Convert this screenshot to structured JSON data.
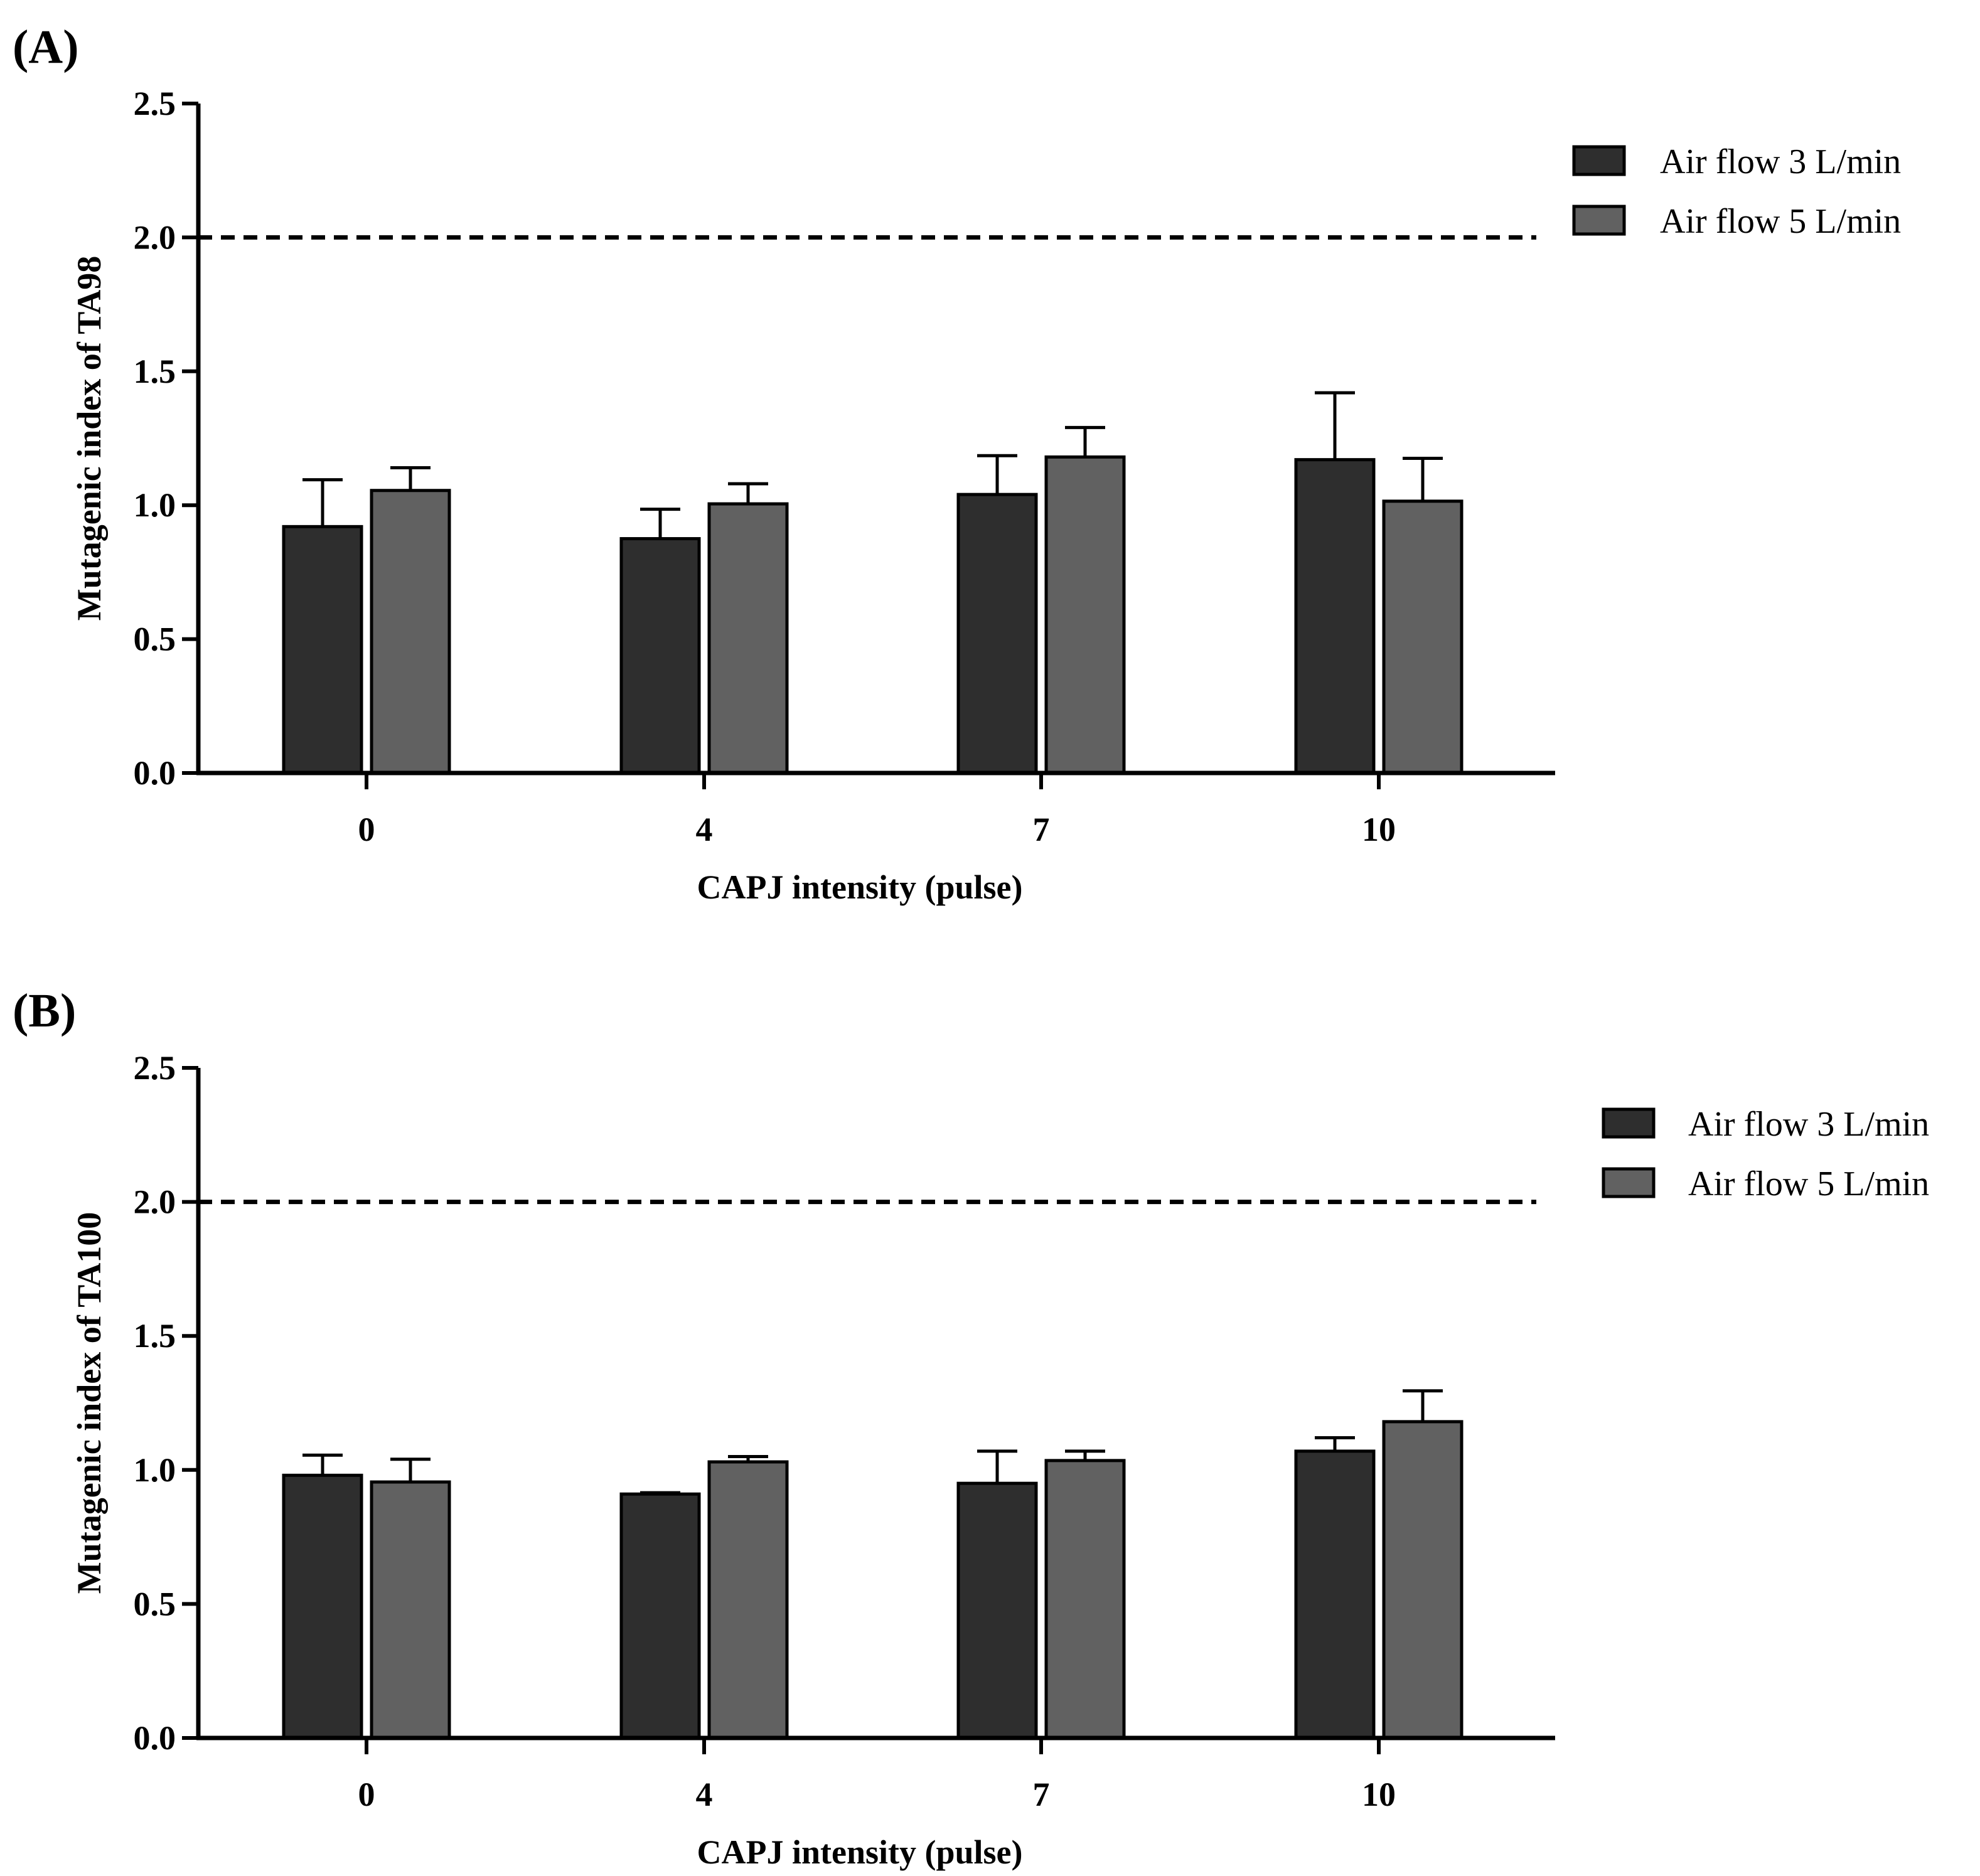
{
  "chart_data": [
    {
      "panel_label": "(A)",
      "type": "bar",
      "categories": [
        "0",
        "4",
        "7",
        "10"
      ],
      "xlabel": "CAPJ intensity (pulse)",
      "ylabel": "Mutagenic index of TA98",
      "ylim": [
        0,
        2.5
      ],
      "yticks": [
        "0.0",
        "0.5",
        "1.0",
        "1.5",
        "2.0",
        "2.5"
      ],
      "reference_line": 2.0,
      "legend_position": "top-right",
      "series": [
        {
          "name": "Air flow 3 L/min",
          "color": "#2e2e2e",
          "values": [
            0.92,
            0.875,
            1.04,
            1.17
          ],
          "errors": [
            0.175,
            0.11,
            0.145,
            0.25
          ]
        },
        {
          "name": "Air flow 5 L/min",
          "color": "#616161",
          "values": [
            1.055,
            1.005,
            1.18,
            1.015
          ],
          "errors": [
            0.085,
            0.075,
            0.11,
            0.16
          ]
        }
      ]
    },
    {
      "panel_label": "(B)",
      "type": "bar",
      "categories": [
        "0",
        "4",
        "7",
        "10"
      ],
      "xlabel": "CAPJ intensity (pulse)",
      "ylabel": "Mutagenic index of TA100",
      "ylim": [
        0,
        2.5
      ],
      "yticks": [
        "0.0",
        "0.5",
        "1.0",
        "1.5",
        "2.0",
        "2.5"
      ],
      "reference_line": 2.0,
      "legend_position": "top-right",
      "series": [
        {
          "name": "Air flow 3 L/min",
          "color": "#2e2e2e",
          "values": [
            0.98,
            0.91,
            0.95,
            1.07
          ],
          "errors": [
            0.075,
            0.005,
            0.12,
            0.05
          ]
        },
        {
          "name": "Air flow 5 L/min",
          "color": "#616161",
          "values": [
            0.955,
            1.03,
            1.035,
            1.18
          ],
          "errors": [
            0.085,
            0.02,
            0.035,
            0.115
          ]
        }
      ]
    }
  ]
}
